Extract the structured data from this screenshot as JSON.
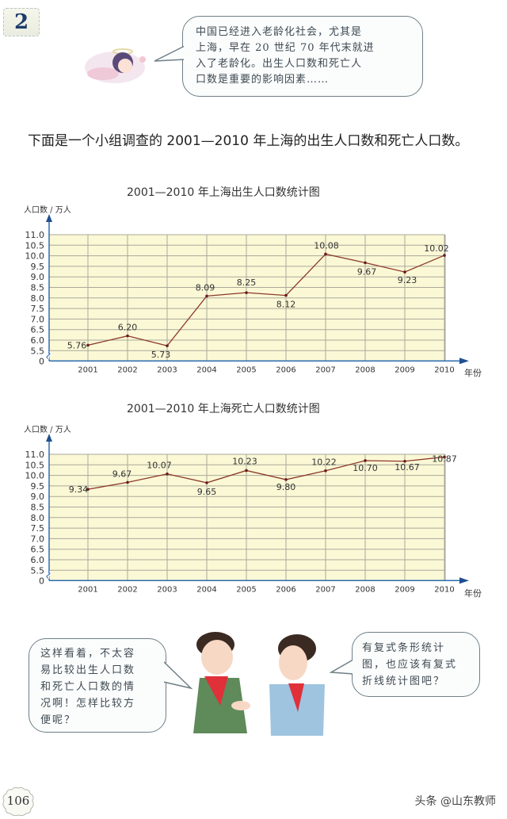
{
  "header": {
    "lesson_number": "2",
    "angel_speech": "中国已经进入老龄化社会，尤其是\n上海，早在 20 世纪 70 年代末就进\n入了老龄化。出生人口数和死亡人\n口数是重要的影响因素……"
  },
  "intro_text": "下面是一个小组调查的 2001—2010 年上海的出生人口数和死亡人口数。",
  "charts": {
    "birth": {
      "title": "2001—2010 年上海出生人口数统计图",
      "ylabel": "人口数 / 万人",
      "xlabel": "年份"
    },
    "death": {
      "title": "2001—2010 年上海死亡人口数统计图",
      "ylabel": "人口数 / 万人",
      "xlabel": "年份"
    }
  },
  "chart_data": [
    {
      "type": "line",
      "title": "2001—2010 年上海出生人口数统计图",
      "xlabel": "年份",
      "ylabel": "人口数 / 万人",
      "categories": [
        "2001",
        "2002",
        "2003",
        "2004",
        "2005",
        "2006",
        "2007",
        "2008",
        "2009",
        "2010"
      ],
      "values": [
        5.76,
        6.2,
        5.73,
        8.09,
        8.25,
        8.12,
        10.08,
        9.67,
        9.23,
        10.02
      ],
      "data_labels": [
        "5.76",
        "6.20",
        "5.73",
        "8.09",
        "8.25",
        "8.12",
        "10.08",
        "9.67",
        "9.23",
        "10.02"
      ],
      "yticks": [
        "0",
        "5.5",
        "6.0",
        "6.5",
        "7.0",
        "7.5",
        "8.0",
        "8.5",
        "9.0",
        "9.5",
        "10.0",
        "10.5",
        "11.0"
      ],
      "ylim": [
        5.5,
        11.0
      ],
      "axis_break": true,
      "grid": true,
      "line_color": "#8b3a2a",
      "plot_bg": "#fbf8d6"
    },
    {
      "type": "line",
      "title": "2001—2010 年上海死亡人口数统计图",
      "xlabel": "年份",
      "ylabel": "人口数 / 万人",
      "categories": [
        "2001",
        "2002",
        "2003",
        "2004",
        "2005",
        "2006",
        "2007",
        "2008",
        "2009",
        "2010"
      ],
      "values": [
        9.34,
        9.67,
        10.07,
        9.65,
        10.23,
        9.8,
        10.22,
        10.7,
        10.67,
        10.87
      ],
      "data_labels": [
        "9.34",
        "9.67",
        "10.07",
        "9.65",
        "10.23",
        "9.80",
        "10.22",
        "10.70",
        "10.67",
        "10.87"
      ],
      "yticks": [
        "0",
        "5.5",
        "6.0",
        "6.5",
        "7.0",
        "7.5",
        "8.0",
        "8.5",
        "9.0",
        "9.5",
        "10.0",
        "10.5",
        "11.0"
      ],
      "ylim": [
        5.5,
        11.0
      ],
      "axis_break": true,
      "grid": true,
      "line_color": "#8b3a2a",
      "plot_bg": "#fbf8d6"
    }
  ],
  "footer": {
    "boy_speech": "这样看着，不太容\n易比较出生人口数\n和死亡人口数的情\n况啊！怎样比较方\n便呢？",
    "girl_speech": "有复式条形统计\n图，也应该有复式\n折线统计图吧？",
    "page_number": "106",
    "watermark": "头条 @山东教师"
  },
  "colors": {
    "axis": "#2b6cb0",
    "grid": "#a9a99a",
    "bubble_border": "#6f7f86"
  }
}
